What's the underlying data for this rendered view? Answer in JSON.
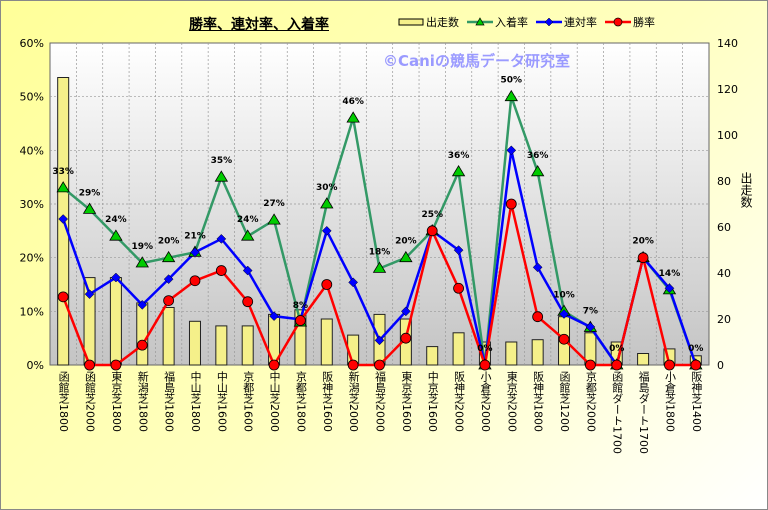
{
  "chart_data": {
    "type": "bar+line",
    "title": "勝率、連対率、入着率",
    "watermark": "©Caniの競馬データ研究室",
    "categories": [
      "函館芝1800",
      "函館芝2000",
      "東京芝1800",
      "新潟芝1800",
      "福島芝1800",
      "中山芝1800",
      "中山芝1600",
      "京都芝1600",
      "中山芝2000",
      "京都芝1800",
      "阪神芝1600",
      "新潟芝2000",
      "福島芝2000",
      "東京芝1600",
      "中京芝1600",
      "阪神芝2000",
      "小倉芝2000",
      "東京芝2000",
      "阪神芝1800",
      "函館芝1200",
      "京都芝2000",
      "函館ダート1700",
      "福島ダート1700",
      "小倉芝1800",
      "阪神芝1400"
    ],
    "series": [
      {
        "name": "出走数",
        "type": "bar",
        "axis": "right",
        "color": "#f5f08a",
        "values": [
          125,
          38,
          38,
          27,
          25,
          19,
          17,
          17,
          22,
          24,
          20,
          13,
          22,
          20,
          8,
          14,
          10,
          10,
          11,
          21,
          14,
          10,
          5,
          7,
          4
        ]
      },
      {
        "name": "入着率",
        "type": "line",
        "axis": "left",
        "color": "#339966",
        "marker": "triangle",
        "marker_color": "#00cc00",
        "values": [
          33,
          29,
          24,
          19,
          20,
          21,
          35,
          24,
          27,
          8,
          30,
          46,
          18,
          20,
          25,
          36,
          0,
          50,
          36,
          10,
          7,
          0,
          20,
          14,
          0
        ],
        "labels": [
          "33%",
          "29%",
          "24%",
          "19%",
          "20%",
          "21%",
          "35%",
          "24%",
          "27%",
          "8%",
          "30%",
          "46%",
          "18%",
          "20%",
          "25%",
          "36%",
          "0%",
          "50%",
          "36%",
          "10%",
          "7%",
          "0%",
          "20%",
          "14%",
          "0%"
        ]
      },
      {
        "name": "連対率",
        "type": "line",
        "axis": "left",
        "color": "#0000ff",
        "marker": "diamond",
        "values": [
          27.2,
          13.2,
          16.3,
          11.2,
          16,
          21,
          23.5,
          17.6,
          9.1,
          8.5,
          25,
          15.4,
          4.6,
          10,
          25,
          21.4,
          0,
          40,
          18.2,
          9.5,
          7.1,
          0,
          20,
          14.3,
          0
        ]
      },
      {
        "name": "勝率",
        "type": "line",
        "axis": "left",
        "color": "#ff0000",
        "marker": "circle",
        "values": [
          12.7,
          0,
          0,
          3.7,
          12,
          15.7,
          17.6,
          11.8,
          0,
          8.3,
          15,
          0,
          0,
          5,
          25,
          14.3,
          0,
          30,
          9,
          4.8,
          0,
          0,
          20,
          0,
          0
        ]
      }
    ],
    "y_left": {
      "label": "",
      "ticks": [
        "0%",
        "10%",
        "20%",
        "30%",
        "40%",
        "50%",
        "60%"
      ],
      "ylim": [
        0,
        60
      ]
    },
    "y_right": {
      "label": "出走数",
      "ticks": [
        "0",
        "20",
        "40",
        "60",
        "80",
        "100",
        "120",
        "140"
      ],
      "ylim": [
        0,
        140
      ]
    },
    "grid": true,
    "legend": "top-right"
  }
}
